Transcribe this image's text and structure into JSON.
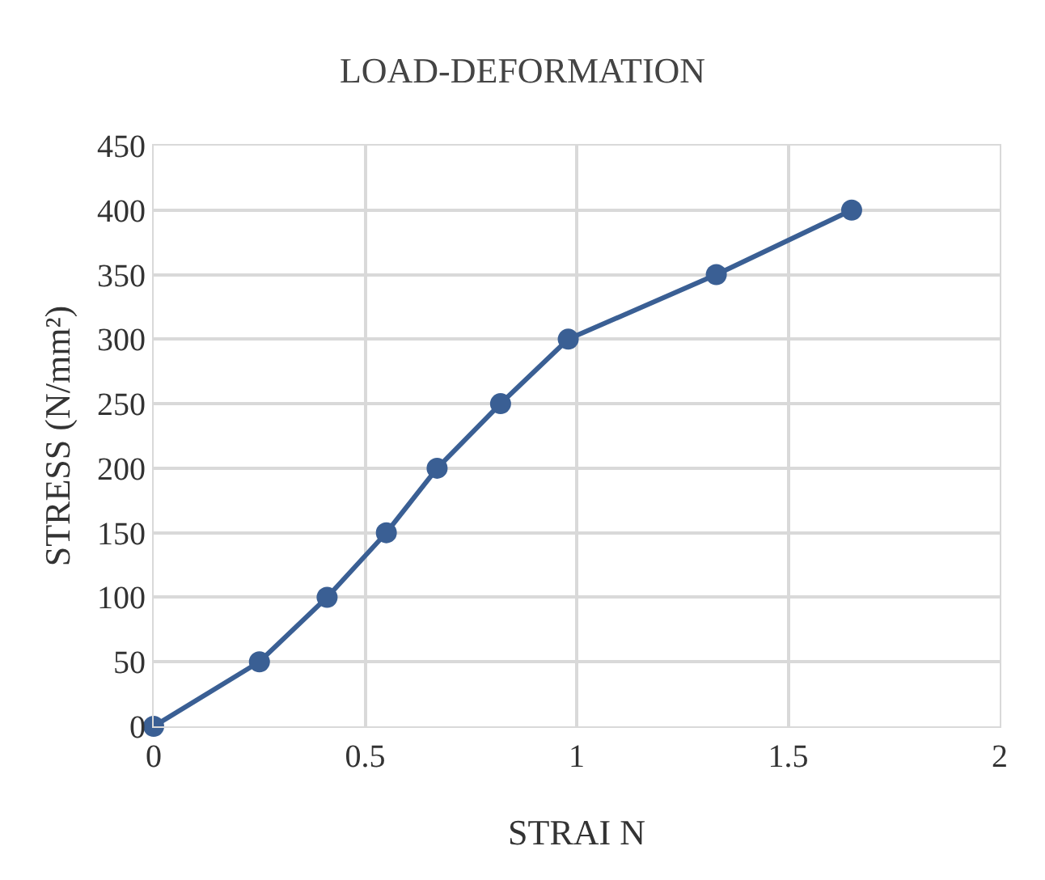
{
  "chart_data": {
    "type": "line",
    "title": "LOAD-DEFORMATION",
    "xlabel": "STRAI N",
    "ylabel": "STRESS (N/mm²)",
    "x": [
      0,
      0.25,
      0.41,
      0.55,
      0.67,
      0.82,
      0.98,
      1.33,
      1.65
    ],
    "series": [
      {
        "color": "#3a5f94",
        "values": [
          0,
          50,
          100,
          150,
          200,
          250,
          300,
          350,
          400
        ]
      }
    ],
    "xlim": [
      0,
      2
    ],
    "xticks": [
      0,
      0.5,
      1,
      1.5,
      2
    ],
    "ylim": [
      0,
      450
    ],
    "yticks": [
      0,
      50,
      100,
      150,
      200,
      250,
      300,
      350,
      400,
      450
    ],
    "grid": true,
    "marker": "circle",
    "line_style": "solid",
    "legend": false
  }
}
